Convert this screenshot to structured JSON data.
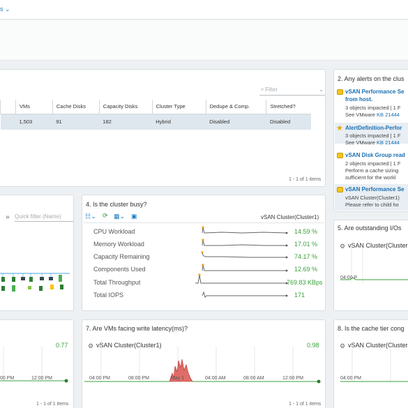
{
  "topbar": {
    "caret": "s ⌄"
  },
  "table_panel": {
    "filter_placeholder": "Filter",
    "columns": [
      "VMs",
      "Cache Disks",
      "Capacity Disks",
      "Cluster Type",
      "Dedupe & Comp.",
      "Stretched?"
    ],
    "row": [
      "1,503",
      "91",
      "182",
      "Hybrid",
      "Disabled",
      "Disabled"
    ],
    "items": "1 - 1 of 1 items"
  },
  "alerts_panel": {
    "title": "2. Any alerts on the clus",
    "alerts": [
      {
        "title": "vSAN Performance Se",
        "title2": "from host.",
        "lines": [
          "3 objects impacted | 1 F"
        ],
        "link_prefix": "See VMware ",
        "link": "KB 21444"
      },
      {
        "title": "AlertDefinition-Perfor",
        "lines": [
          "3 objects impacted | 1 F"
        ],
        "link_prefix": "See VMware ",
        "link": "KB 21444"
      },
      {
        "title": "vSAN Disk Group read",
        "lines": [
          "2 objects impacted | 1 F",
          "Perform a cache sizing",
          "sufficient for the workl"
        ]
      },
      {
        "title": "vSAN Performance Se",
        "lines": [
          "vSAN Cluster(Cluster1)",
          "Please refer to child ho"
        ]
      }
    ]
  },
  "left_mid_panel": {
    "quick_filter_placeholder": "Quick filter (Name)",
    "chevrons": "»"
  },
  "busy_panel": {
    "title": "4. Is the cluster busy?",
    "cluster": "vSAN Cluster(Cluster1)",
    "metrics": [
      {
        "label": "CPU Workload",
        "value": "14.59 %"
      },
      {
        "label": "Memory Workload",
        "value": "17.01 %"
      },
      {
        "label": "Capacity Remaining",
        "value": "74.17 %"
      },
      {
        "label": "Components Used",
        "value": "12.69 %"
      },
      {
        "label": "Total Throughput",
        "value": "769.83 KBps"
      },
      {
        "label": "Total IOPS",
        "value": "171"
      }
    ]
  },
  "io_panel": {
    "title": "5. Are outstanding I/Os",
    "cluster": "vSAN Cluster(Cluster",
    "axis": [
      "04:00 P"
    ]
  },
  "left_bottom_panel": {
    "value": "0.77",
    "axis": [
      "00 PM",
      "12:00 PM"
    ],
    "items": "1 - 1 of 1 items"
  },
  "latency_panel": {
    "title": "7. Are VMs facing write latency(ms)?",
    "cluster": "vSAN Cluster(Cluster1)",
    "value": "0.98",
    "axis": [
      "04:00 PM",
      "08:00 PM",
      "May 1",
      "04:00 AM",
      "08:00 AM",
      "12:00 PM"
    ],
    "items": "1 - 1 of 1 items"
  },
  "cache_panel": {
    "title": "8. Is the cache tier cong",
    "cluster": "vSAN Cluster(Cluster",
    "axis": [
      "04:00 PM"
    ]
  },
  "colors": {
    "accent": "#1a7cc4",
    "value_green": "#3aa23a",
    "spike_red": "#c62828"
  }
}
